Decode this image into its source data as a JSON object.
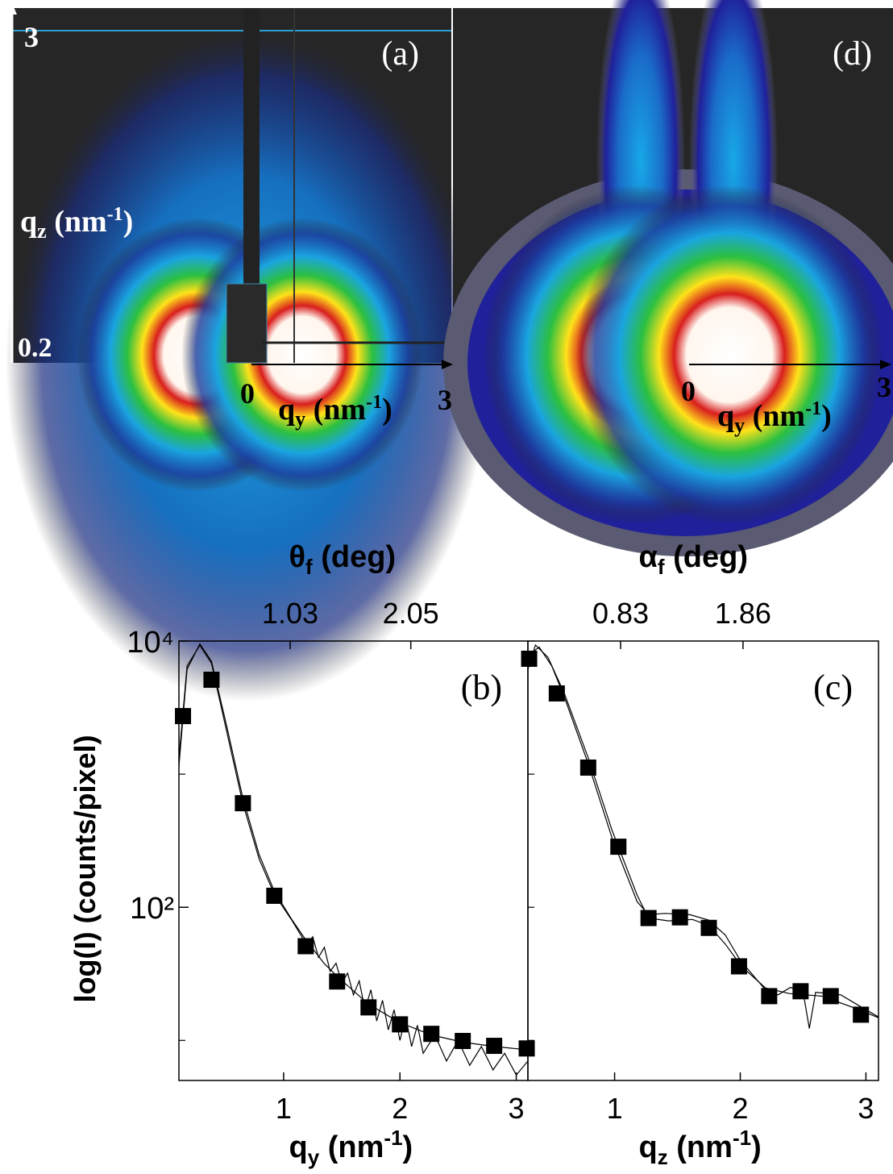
{
  "panels": [
    {
      "label": "(a)",
      "z_top": 3,
      "z_bottom": 0.2,
      "z_label": [
        "q",
        "z",
        " (nm",
        "-1",
        ")"
      ],
      "y_left": 0,
      "y_right": 3,
      "y_label": [
        "q",
        "y",
        " (nm",
        "-1",
        ")"
      ]
    },
    {
      "label": "(d)",
      "y_left": 0,
      "y_right": 3,
      "y_label": [
        "q",
        "y",
        " (nm",
        "-1",
        ")"
      ]
    }
  ],
  "chart_data": [
    {
      "type": "line",
      "panel_label": "(b)",
      "ylabel": "log(I) (counts/pixel)",
      "xlabel": [
        "q",
        "y",
        " (nm",
        "-1",
        ")"
      ],
      "x2label": [
        "θ",
        "f",
        " (deg)"
      ],
      "xlim": [
        0.1,
        3.1
      ],
      "xticks": [
        1,
        2,
        3
      ],
      "x2lim": [
        0.09,
        3.04
      ],
      "x2ticks": [
        1.03,
        2.05
      ],
      "yscale": "log",
      "ylim": [
        5,
        10000
      ],
      "yticks": [
        {
          "value": 10000,
          "label": "10⁴"
        },
        {
          "value": 100,
          "label": "10²"
        }
      ],
      "yminor": [
        1000,
        10
      ],
      "grid": false,
      "series": [
        {
          "color": "#000000",
          "x": [
            0.1,
            0.17,
            0.28,
            0.38,
            0.51,
            0.65,
            0.79,
            0.92,
            1.07,
            1.19,
            1.35,
            1.47,
            1.73,
            2.0,
            2.27,
            2.54,
            2.81,
            3.1
          ],
          "values": [
            1150,
            6140,
            9500,
            7050,
            2310,
            658,
            248,
            132,
            81,
            57,
            37.7,
            29.7,
            18.7,
            13.6,
            11.0,
            9.7,
            9.0,
            8.5
          ]
        },
        {
          "color": "#000000",
          "x": [
            0.1,
            0.17,
            0.28,
            0.38,
            0.51,
            0.65,
            0.79,
            0.92,
            1.07,
            1.2,
            1.25,
            1.3,
            1.35,
            1.4,
            1.45,
            1.5,
            1.55,
            1.6,
            1.65,
            1.7,
            1.75,
            1.8,
            1.85,
            1.9,
            1.95,
            2.0,
            2.05,
            2.1,
            2.15,
            2.2,
            2.3,
            2.4,
            2.5,
            2.6,
            2.7,
            2.8,
            2.9,
            3.0,
            3.1
          ],
          "values": [
            1300,
            6500,
            9300,
            6800,
            2100,
            600,
            230,
            125,
            80,
            52,
            60,
            42,
            50,
            33,
            38,
            27,
            32,
            22,
            28,
            17,
            24,
            14,
            20,
            12,
            17,
            10,
            15,
            9,
            13,
            8,
            11,
            7,
            10,
            6.5,
            9,
            6,
            8,
            5.5,
            7
          ]
        },
        {
          "color": "#000000",
          "marker": "square",
          "x": [
            0.135,
            0.38,
            0.65,
            0.92,
            1.19,
            1.46,
            1.73,
            2.0,
            2.27,
            2.54,
            2.81,
            3.09
          ],
          "values": [
            2730,
            5120,
            605,
            122,
            51,
            27.7,
            17.7,
            13.2,
            11.2,
            9.9,
            9.1,
            8.7
          ]
        }
      ]
    },
    {
      "type": "line",
      "panel_label": "(c)",
      "xlabel": [
        "q",
        "z",
        " (nm",
        "-1",
        ")"
      ],
      "x2label": [
        "α",
        "f",
        " (deg)"
      ],
      "xlim": [
        0.31,
        3.1
      ],
      "xticks": [
        1,
        2,
        3
      ],
      "x2lim": [
        0.05,
        3.0
      ],
      "x2ticks": [
        0.83,
        1.86
      ],
      "yscale": "log",
      "ylim": [
        5,
        10000
      ],
      "yminor": [
        10000,
        1000,
        100,
        10
      ],
      "grid": false,
      "series": [
        {
          "color": "#000000",
          "x": [
            0.31,
            0.37,
            0.47,
            0.6,
            0.79,
            0.98,
            1.18,
            1.27,
            1.43,
            1.62,
            1.75,
            1.88,
            2.01,
            2.2,
            2.39,
            2.65,
            2.91,
            3.1
          ],
          "values": [
            6140,
            9330,
            7550,
            4040,
            1330,
            377,
            123,
            83,
            79,
            81,
            73,
            53,
            36,
            24.8,
            22.5,
            21.5,
            17.5,
            14.8
          ]
        },
        {
          "color": "#000000",
          "x": [
            0.31,
            0.4,
            0.5,
            0.6,
            0.79,
            0.98,
            1.18,
            1.27,
            1.4,
            1.6,
            1.75,
            1.88,
            2.0,
            2.2,
            2.3,
            2.4,
            2.5,
            2.55,
            2.6,
            2.8,
            3.0,
            3.1
          ],
          "values": [
            7800,
            9000,
            6500,
            3800,
            1200,
            330,
            110,
            88,
            90,
            88,
            80,
            62,
            40,
            24,
            22,
            25,
            23,
            12.3,
            23,
            22,
            17,
            15
          ]
        },
        {
          "color": "#000000",
          "marker": "square",
          "x": [
            0.32,
            0.54,
            0.79,
            1.03,
            1.27,
            1.52,
            1.75,
            1.99,
            2.23,
            2.48,
            2.72,
            2.96
          ],
          "values": [
            7360,
            4040,
            1120,
            285,
            83,
            84,
            70,
            36,
            21.5,
            23.4,
            21.5,
            15.6
          ]
        }
      ]
    }
  ]
}
